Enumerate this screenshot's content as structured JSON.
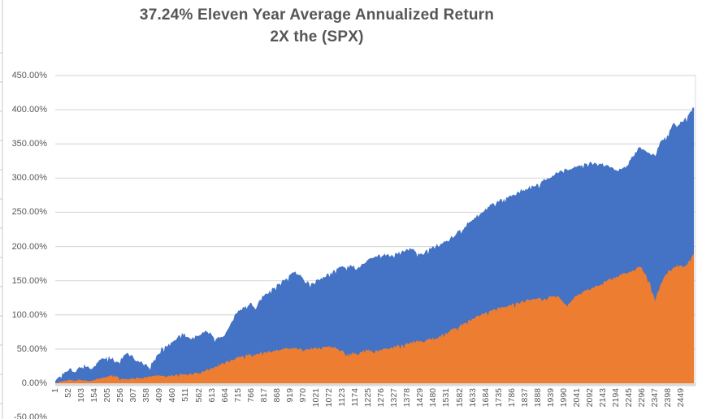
{
  "title": {
    "line1": "37.24% Eleven Year Average Annualized Return",
    "line2": "2X the (SPX)"
  },
  "chart_data": {
    "type": "area",
    "title": "37.24% Eleven Year Average Annualized Return 2X the (SPX)",
    "xlabel": "",
    "ylabel": "",
    "grid": true,
    "legend": "none",
    "x_range": [
      1,
      2505
    ],
    "ylim_visible": [
      -50,
      450
    ],
    "y_ticks": {
      "values": [
        450,
        400,
        350,
        300,
        250,
        200,
        150,
        100,
        50,
        0,
        -50
      ],
      "labels": [
        "450.00%",
        "400.00%",
        "350.00%",
        "300.00%",
        "250.00%",
        "200.00%",
        "150.00%",
        "100.00%",
        "50.00%",
        "0.00%",
        "-50.00%"
      ]
    },
    "x_tick_labels": [
      "1",
      "52",
      "103",
      "154",
      "205",
      "256",
      "307",
      "358",
      "409",
      "460",
      "511",
      "562",
      "613",
      "664",
      "715",
      "766",
      "817",
      "868",
      "919",
      "970",
      "1021",
      "1072",
      "1123",
      "1174",
      "1225",
      "1276",
      "1327",
      "1378",
      "1429",
      "1480",
      "1531",
      "1582",
      "1633",
      "1684",
      "1735",
      "1786",
      "1837",
      "1888",
      "1939",
      "1990",
      "2041",
      "2092",
      "2143",
      "2194",
      "2245",
      "2296",
      "2347",
      "2398",
      "2449"
    ],
    "x_tick_values": [
      1,
      52,
      103,
      154,
      205,
      256,
      307,
      358,
      409,
      460,
      511,
      562,
      613,
      664,
      715,
      766,
      817,
      868,
      919,
      970,
      1021,
      1072,
      1123,
      1174,
      1225,
      1276,
      1327,
      1378,
      1429,
      1480,
      1531,
      1582,
      1633,
      1684,
      1735,
      1786,
      1837,
      1888,
      1939,
      1990,
      2041,
      2092,
      2143,
      2194,
      2245,
      2296,
      2347,
      2398,
      2449
    ],
    "x": [
      1,
      20,
      39,
      58,
      77,
      96,
      115,
      134,
      154,
      173,
      192,
      211,
      230,
      249,
      268,
      287,
      306,
      325,
      344,
      363,
      382,
      402,
      421,
      440,
      459,
      478,
      497,
      516,
      535,
      554,
      573,
      592,
      611,
      630,
      649,
      668,
      688,
      707,
      726,
      745,
      764,
      783,
      802,
      821,
      840,
      859,
      878,
      897,
      916,
      935,
      955,
      974,
      993,
      1012,
      1031,
      1050,
      1069,
      1088,
      1107,
      1126,
      1145,
      1164,
      1183,
      1202,
      1222,
      1241,
      1260,
      1279,
      1298,
      1317,
      1336,
      1355,
      1374,
      1393,
      1412,
      1431,
      1450,
      1469,
      1489,
      1508,
      1527,
      1546,
      1565,
      1584,
      1603,
      1622,
      1641,
      1660,
      1679,
      1698,
      1717,
      1736,
      1756,
      1775,
      1794,
      1813,
      1832,
      1851,
      1870,
      1889,
      1908,
      1927,
      1946,
      1965,
      1984,
      2003,
      2023,
      2042,
      2061,
      2080,
      2099,
      2118,
      2137,
      2156,
      2175,
      2194,
      2213,
      2232,
      2251,
      2270,
      2290,
      2309,
      2328,
      2347,
      2366,
      2385,
      2404,
      2423,
      2442,
      2461,
      2480,
      2499
    ],
    "series": [
      {
        "id": "blue-area",
        "color": "#4472C4",
        "unit": "percent",
        "values": [
          3,
          10,
          17,
          22,
          16,
          24,
          28,
          22,
          25,
          34,
          36,
          40,
          33,
          31,
          40,
          43,
          38,
          33,
          28,
          24,
          30,
          42,
          52,
          54,
          60,
          66,
          74,
          68,
          65,
          69,
          72,
          76,
          72,
          65,
          68,
          74,
          88,
          102,
          108,
          113,
          118,
          108,
          122,
          130,
          136,
          140,
          146,
          150,
          158,
          162,
          158,
          150,
          147,
          146,
          152,
          156,
          160,
          165,
          168,
          171,
          172,
          170,
          168,
          175,
          180,
          183,
          185,
          186,
          188,
          188,
          190,
          192,
          196,
          196,
          192,
          190,
          194,
          196,
          200,
          204,
          207,
          212,
          216,
          224,
          229,
          236,
          242,
          246,
          252,
          258,
          262,
          265,
          270,
          273,
          276,
          280,
          283,
          285,
          288,
          291,
          296,
          300,
          304,
          307,
          310,
          312,
          314,
          317,
          319,
          321,
          322,
          321,
          320,
          319,
          316,
          312,
          313,
          315,
          327,
          338,
          345,
          340,
          335,
          332,
          352,
          360,
          370,
          380,
          378,
          386,
          394,
          403
        ]
      },
      {
        "id": "orange-area",
        "color": "#ED7D31",
        "unit": "percent",
        "values": [
          1,
          2,
          4,
          5,
          4,
          5,
          4,
          3,
          5,
          7,
          8,
          10,
          12,
          8,
          6,
          5,
          7,
          8,
          7,
          9,
          11,
          12,
          11,
          10,
          12,
          13,
          14,
          12,
          13,
          15,
          16,
          19,
          22,
          25,
          28,
          31,
          35,
          37,
          39,
          40,
          42,
          41,
          44,
          45,
          46,
          47,
          49,
          50,
          51,
          52,
          50,
          48,
          50,
          52,
          52,
          53,
          53,
          52,
          50,
          48,
          44,
          46,
          43,
          46,
          48,
          46,
          47,
          49,
          51,
          52,
          54,
          56,
          58,
          60,
          61,
          62,
          63,
          65,
          66,
          68,
          74,
          77,
          80,
          84,
          88,
          92,
          95,
          98,
          101,
          105,
          108,
          111,
          112,
          114,
          116,
          117,
          119,
          122,
          124,
          125,
          121,
          124,
          127,
          128,
          120,
          112,
          122,
          128,
          133,
          136,
          139,
          142,
          145,
          149,
          152,
          156,
          158,
          160,
          163,
          166,
          170,
          160,
          146,
          120,
          142,
          157,
          165,
          170,
          172,
          170,
          180,
          190
        ]
      }
    ]
  }
}
